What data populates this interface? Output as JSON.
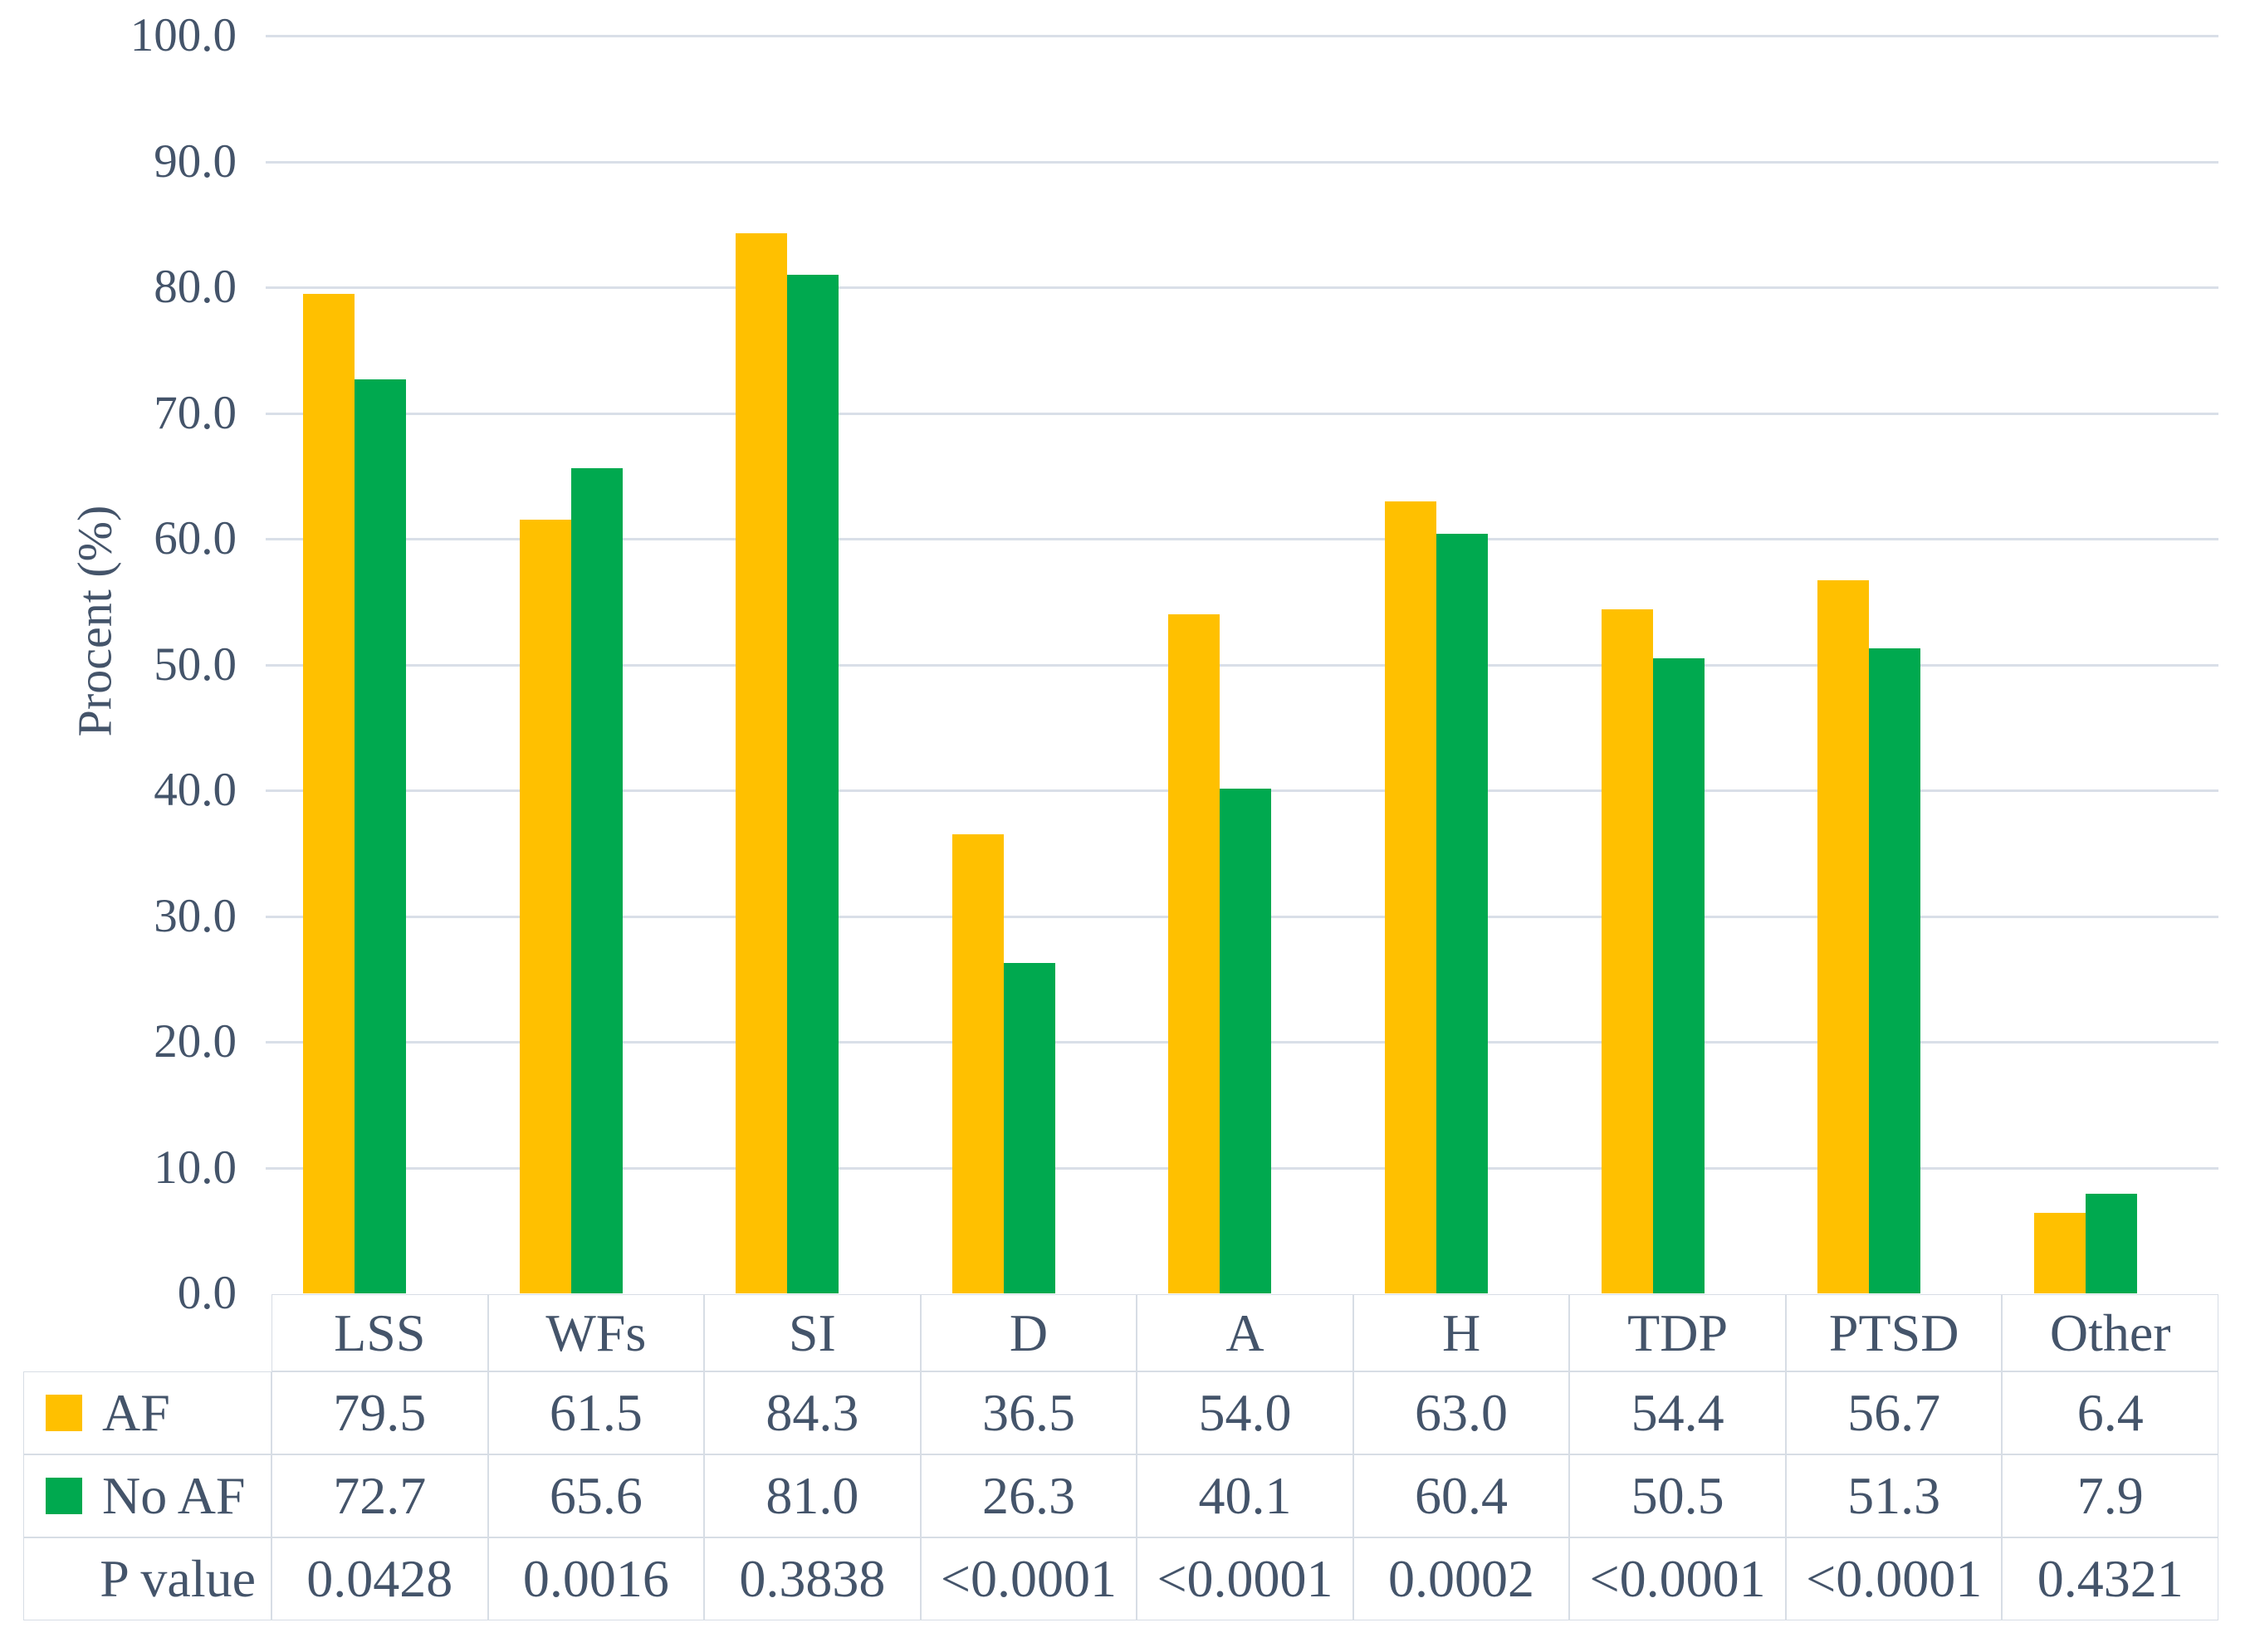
{
  "chart_data": {
    "type": "bar",
    "title": "",
    "ylabel": "Procent (%)",
    "xlabel": "",
    "ylim": [
      0,
      100
    ],
    "ytick_step": 10,
    "ytick_decimals": 1,
    "grid": "horizontal",
    "legend_position": "table-row-labels",
    "categories": [
      "LSS",
      "WFs",
      "SI",
      "D",
      "A",
      "H",
      "TDP",
      "PTSD",
      "Other"
    ],
    "series": [
      {
        "name": "AF",
        "color": "#FFC000",
        "values": [
          79.5,
          61.5,
          84.3,
          36.5,
          54.0,
          63.0,
          54.4,
          56.7,
          6.4
        ]
      },
      {
        "name": "No AF",
        "color": "#00A94F",
        "values": [
          72.7,
          65.6,
          81.0,
          26.3,
          40.1,
          60.4,
          50.5,
          51.3,
          7.9
        ]
      }
    ],
    "annotation_rows": [
      {
        "label": "P value",
        "values": [
          "0.0428",
          "0.0016",
          "0.3838",
          "<0.0001",
          "<0.0001",
          "0.0002",
          "<0.0001",
          "<0.0001",
          "0.4321"
        ]
      }
    ]
  },
  "colors": {
    "text": "#44546A",
    "gridline": "#D9DFE8",
    "table_border": "#D7DDE5",
    "series_af": "#FFC000",
    "series_no_af": "#00A94F",
    "background": "#FFFFFF"
  }
}
